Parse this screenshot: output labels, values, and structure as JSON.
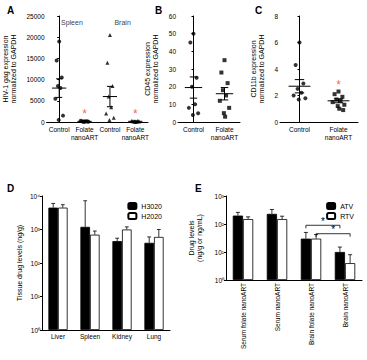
{
  "chart_data": [
    {
      "type": "dot",
      "title": "A",
      "ylabel": "HIV-1 gag expression normalized to GAPDH",
      "categories": [
        "Control",
        "Folate nanoART",
        "Control",
        "Folate nanoART"
      ],
      "group_labels": [
        {
          "text": "Spleen",
          "categories": [
            0,
            1
          ]
        },
        {
          "text": "Brain",
          "categories": [
            2,
            3
          ]
        }
      ],
      "groups": [
        {
          "marker": "circle",
          "color": "#000000",
          "values": [
            19000,
            14500,
            10500,
            8500,
            8000,
            5500,
            1500,
            500
          ],
          "mean": 8000,
          "sem": 2200
        },
        {
          "marker": "circle",
          "color": "#000000",
          "values": [
            100,
            150,
            200,
            80,
            120,
            300,
            50,
            90
          ],
          "mean": 150,
          "sem": 40,
          "annotation": {
            "text": "*",
            "color": "#e8412c"
          }
        },
        {
          "marker": "triangle",
          "color": "#000000",
          "values": [
            20500,
            14000,
            8500,
            6000,
            3500,
            2000,
            1000,
            500
          ],
          "mean": 6000,
          "sem": 2400
        },
        {
          "marker": "triangle",
          "color": "#000000",
          "values": [
            100,
            200,
            300,
            150,
            80,
            250,
            120,
            60
          ],
          "mean": 160,
          "sem": 30,
          "annotation": {
            "text": "*",
            "color": "#e8412c"
          }
        }
      ],
      "ylim": [
        0,
        25000
      ],
      "yticks": [
        0,
        5000,
        10000,
        15000,
        20000,
        25000
      ],
      "grid": false
    },
    {
      "type": "dot",
      "title": "B",
      "ylabel": "CD45 expression normalized to GAPDH",
      "categories": [
        "Control",
        "Folate nanoART"
      ],
      "groups": [
        {
          "marker": "circle",
          "color": "#000000",
          "values": [
            50,
            45,
            25,
            20,
            10,
            8,
            5,
            4
          ],
          "mean": 19.5,
          "sem": 6
        },
        {
          "marker": "square",
          "color": "#000000",
          "values": [
            35,
            28,
            22,
            18,
            15,
            12,
            8,
            5,
            3
          ],
          "mean": 16,
          "sem": 3.5
        }
      ],
      "ylim": [
        0,
        60
      ],
      "yticks": [
        0,
        10,
        20,
        30,
        40,
        50,
        60
      ],
      "grid": false
    },
    {
      "type": "dot",
      "title": "C",
      "ylabel": "CD11b expression normalized to GAPDH",
      "categories": [
        "Control",
        "Folate nanoART"
      ],
      "groups": [
        {
          "marker": "circle",
          "color": "#000000",
          "values": [
            6,
            4.3,
            2.9,
            2.5,
            2.2,
            2.0,
            1.8,
            1.7
          ],
          "mean": 2.7,
          "sem": 0.5
        },
        {
          "marker": "square",
          "color": "#000000",
          "values": [
            2.3,
            2.1,
            1.9,
            1.7,
            1.6,
            1.5,
            1.3,
            1.2,
            1.0,
            0.9
          ],
          "mean": 1.6,
          "sem": 0.15,
          "annotation": {
            "text": "*",
            "color": "#e8412c"
          }
        }
      ],
      "ylim": [
        0,
        8
      ],
      "yticks": [
        0,
        2,
        4,
        6,
        8
      ],
      "grid": false
    },
    {
      "type": "bar",
      "title": "D",
      "ylabel": "Tissue drug levels (ng/g)",
      "categories": [
        "Liver",
        "Spleen",
        "Kidney",
        "Lung"
      ],
      "series": [
        {
          "name": "H3020",
          "color": "#000000",
          "values": [
            4500,
            1200,
            450,
            400
          ],
          "errors": [
            1500,
            6000,
            100,
            200
          ]
        },
        {
          "name": "H2020",
          "color": "#ffffff",
          "values": [
            4500,
            700,
            1000,
            600
          ],
          "errors": [
            1000,
            200,
            200,
            400
          ]
        }
      ],
      "log": "y",
      "ylim": [
        1,
        10000
      ],
      "yticks": [
        {
          "value": 1,
          "label": "10⁰"
        },
        {
          "value": 10,
          "label": "10¹"
        },
        {
          "value": 100,
          "label": "10²"
        },
        {
          "value": 1000,
          "label": "10³"
        },
        {
          "value": 10000,
          "label": "10⁴"
        }
      ],
      "legend": "upper right",
      "grid": false
    },
    {
      "type": "bar",
      "title": "E",
      "ylabel": "Drug levels (ng/g or ng/mL)",
      "categories": [
        "Serum folate nanoART",
        "Serum nanoART",
        "Brain folate nanoART",
        "Brain nanoART"
      ],
      "series": [
        {
          "name": "ATV",
          "color": "#000000",
          "values": [
            200,
            230,
            30,
            10
          ],
          "errors": [
            60,
            100,
            20,
            5
          ]
        },
        {
          "name": "RTV",
          "color": "#ffffff",
          "values": [
            150,
            150,
            30,
            4
          ],
          "errors": [
            30,
            40,
            12,
            4
          ]
        }
      ],
      "comparisons": [
        {
          "from": 2,
          "to": 3,
          "series": "ATV",
          "y": 90,
          "label": "*"
        },
        {
          "from": 2,
          "to": 3,
          "series": "RTV",
          "y": 45,
          "label": "*"
        }
      ],
      "log": "y",
      "ylim": [
        1,
        1000
      ],
      "yticks": [
        {
          "value": 1,
          "label": "10⁰"
        },
        {
          "value": 10,
          "label": "10¹"
        },
        {
          "value": 100,
          "label": "10²"
        },
        {
          "value": 1000,
          "label": "10³"
        }
      ],
      "legend": "upper right",
      "grid": false
    }
  ]
}
